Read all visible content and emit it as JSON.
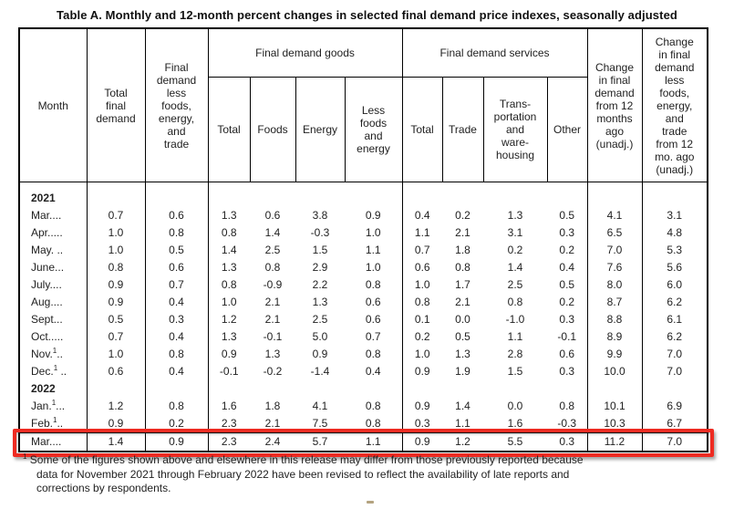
{
  "title": "Table A. Monthly and 12-month percent changes in selected final demand price indexes, seasonally adjusted",
  "columns": {
    "month": "Month",
    "total_final_demand": "Total\nfinal\ndemand",
    "less_fet": "Final\ndemand\nless\nfoods,\nenergy,\nand\ntrade",
    "goods_group": "Final demand goods",
    "services_group": "Final demand services",
    "goods": [
      "Total",
      "Foods",
      "Energy",
      "Less\nfoods\nand\nenergy"
    ],
    "services": [
      "Total",
      "Trade",
      "Trans-\nportation\nand\nware-\nhousing",
      "Other"
    ],
    "change_12mo": "Change\nin final\ndemand\nfrom 12\nmonths\nago\n(unadj.)",
    "change_less_fet_12mo": "Change\nin final\ndemand\nless\nfoods,\nenergy,\nand\ntrade\nfrom 12\nmo. ago\n(unadj.)"
  },
  "sections": [
    {
      "year": "2021",
      "rows": [
        {
          "pre": "Mar....",
          "sup": "",
          "post": "",
          "values": [
            "0.7",
            "0.6",
            "1.3",
            "0.6",
            "3.8",
            "0.9",
            "0.4",
            "0.2",
            "1.3",
            "0.5",
            "4.1",
            "3.1"
          ]
        },
        {
          "pre": "Apr.....",
          "sup": "",
          "post": "",
          "values": [
            "1.0",
            "0.8",
            "0.8",
            "1.4",
            "-0.3",
            "1.0",
            "1.1",
            "2.1",
            "3.1",
            "0.3",
            "6.5",
            "4.8"
          ]
        },
        {
          "pre": "May. ..",
          "sup": "",
          "post": "",
          "values": [
            "1.0",
            "0.5",
            "1.4",
            "2.5",
            "1.5",
            "1.1",
            "0.7",
            "1.8",
            "0.2",
            "0.2",
            "7.0",
            "5.3"
          ]
        },
        {
          "pre": "June...",
          "sup": "",
          "post": "",
          "values": [
            "0.8",
            "0.6",
            "1.3",
            "0.8",
            "2.9",
            "1.0",
            "0.6",
            "0.8",
            "1.4",
            "0.4",
            "7.6",
            "5.6"
          ]
        },
        {
          "pre": "July....",
          "sup": "",
          "post": "",
          "values": [
            "0.9",
            "0.7",
            "0.8",
            "-0.9",
            "2.2",
            "0.8",
            "1.0",
            "1.7",
            "2.5",
            "0.5",
            "8.0",
            "6.0"
          ]
        },
        {
          "pre": "Aug....",
          "sup": "",
          "post": "",
          "values": [
            "0.9",
            "0.4",
            "1.0",
            "2.1",
            "1.3",
            "0.6",
            "0.8",
            "2.1",
            "0.8",
            "0.2",
            "8.7",
            "6.2"
          ]
        },
        {
          "pre": "Sept...",
          "sup": "",
          "post": "",
          "values": [
            "0.5",
            "0.3",
            "1.2",
            "2.1",
            "2.5",
            "0.6",
            "0.1",
            "0.0",
            "-1.0",
            "0.3",
            "8.8",
            "6.1"
          ]
        },
        {
          "pre": "Oct.....",
          "sup": "",
          "post": "",
          "values": [
            "0.7",
            "0.4",
            "1.3",
            "-0.1",
            "5.0",
            "0.7",
            "0.2",
            "0.5",
            "1.1",
            "-0.1",
            "8.9",
            "6.2"
          ]
        },
        {
          "pre": "Nov.",
          "sup": "1",
          "post": "..",
          "values": [
            "1.0",
            "0.8",
            "0.9",
            "1.3",
            "0.9",
            "0.8",
            "1.0",
            "1.3",
            "2.8",
            "0.6",
            "9.9",
            "7.0"
          ]
        },
        {
          "pre": "Dec.",
          "sup": "1",
          "post": " ..",
          "values": [
            "0.6",
            "0.4",
            "-0.1",
            "-0.2",
            "-1.4",
            "0.4",
            "0.9",
            "1.9",
            "1.5",
            "0.3",
            "10.0",
            "7.0"
          ]
        }
      ]
    },
    {
      "year": "2022",
      "rows": [
        {
          "pre": "Jan.",
          "sup": "1",
          "post": "...",
          "values": [
            "1.2",
            "0.8",
            "1.6",
            "1.8",
            "4.1",
            "0.8",
            "0.9",
            "1.4",
            "0.0",
            "0.8",
            "10.1",
            "6.9"
          ]
        },
        {
          "pre": "Feb.",
          "sup": "1",
          "post": "..",
          "values": [
            "0.9",
            "0.2",
            "2.3",
            "2.1",
            "7.5",
            "0.8",
            "0.3",
            "1.1",
            "1.6",
            "-0.3",
            "10.3",
            "6.7"
          ]
        },
        {
          "pre": "Mar....",
          "sup": "",
          "post": "",
          "values": [
            "1.4",
            "0.9",
            "2.3",
            "2.4",
            "5.7",
            "1.1",
            "0.9",
            "1.2",
            "5.5",
            "0.3",
            "11.2",
            "7.0"
          ]
        }
      ]
    }
  ],
  "highlight": {
    "section_index": 1,
    "row_index": 2,
    "color": "#ee2b22"
  },
  "footnote": {
    "sup": "1",
    "text": "Some of the figures shown above and elsewhere in this release may differ from those previously reported because\ndata for November 2021 through February 2022 have been revised to reflect the availability of late reports and\ncorrections by respondents."
  }
}
